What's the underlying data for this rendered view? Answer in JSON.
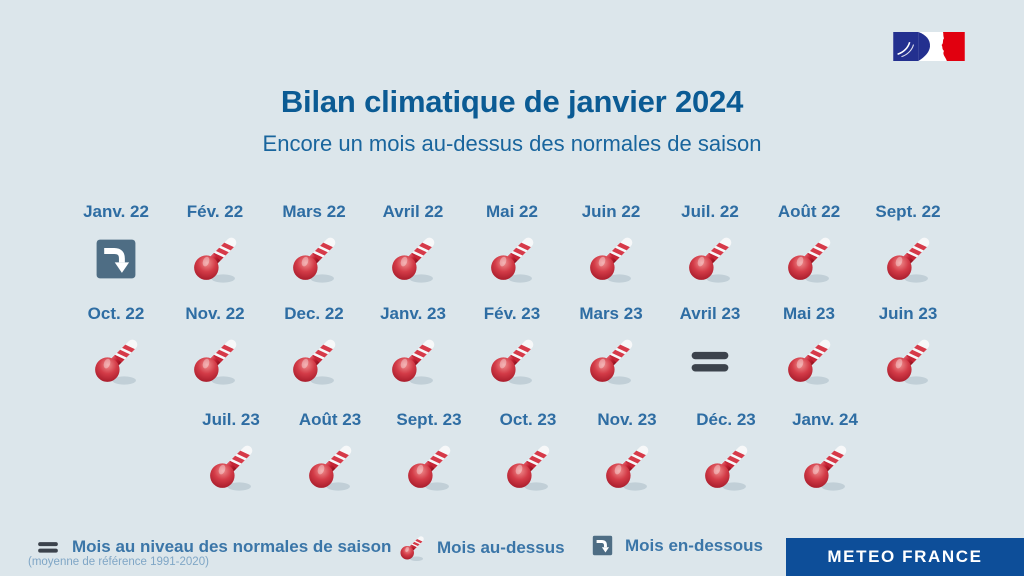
{
  "colors": {
    "bg": "#dce6eb",
    "title": "#0b5b94",
    "subtitle": "#19659d",
    "month-label": "#2e6da3",
    "legend-text": "#3b76a8",
    "note-text": "#7fa6c6",
    "brand-bg": "#0d4e99",
    "brand-text": "#ffffff",
    "arrow-box": "#4e6d84",
    "equals": "#3c434c",
    "thermo-red": "#c21f2e",
    "flag-blue": "#23308f",
    "flag-red": "#e1000f"
  },
  "header": {
    "title": "Bilan climatique de janvier 2024",
    "subtitle": "Encore un mois au-dessus des normales de saison"
  },
  "grid": {
    "rows": [
      [
        {
          "label": "Janv. 22",
          "status": "below"
        },
        {
          "label": "Fév. 22",
          "status": "above"
        },
        {
          "label": "Mars 22",
          "status": "above"
        },
        {
          "label": "Avril 22",
          "status": "above"
        },
        {
          "label": "Mai 22",
          "status": "above"
        },
        {
          "label": "Juin 22",
          "status": "above"
        },
        {
          "label": "Juil. 22",
          "status": "above"
        },
        {
          "label": "Août 22",
          "status": "above"
        },
        {
          "label": "Sept. 22",
          "status": "above"
        }
      ],
      [
        {
          "label": "Oct. 22",
          "status": "above"
        },
        {
          "label": "Nov. 22",
          "status": "above"
        },
        {
          "label": "Dec. 22",
          "status": "above"
        },
        {
          "label": "Janv. 23",
          "status": "above"
        },
        {
          "label": "Fév. 23",
          "status": "above"
        },
        {
          "label": "Mars 23",
          "status": "above"
        },
        {
          "label": "Avril 23",
          "status": "equal"
        },
        {
          "label": "Mai 23",
          "status": "above"
        },
        {
          "label": "Juin 23",
          "status": "above"
        }
      ],
      [
        {
          "label": "Juil. 23",
          "status": "above"
        },
        {
          "label": "Août 23",
          "status": "above"
        },
        {
          "label": "Sept. 23",
          "status": "above"
        },
        {
          "label": "Oct. 23",
          "status": "above"
        },
        {
          "label": "Nov. 23",
          "status": "above"
        },
        {
          "label": "Déc. 23",
          "status": "above"
        },
        {
          "label": "Janv. 24",
          "status": "above"
        }
      ]
    ]
  },
  "legend": {
    "equal_label": "Mois au niveau des normales de saison",
    "equal_note": "(moyenne de référence 1991-2020)",
    "above_label": "Mois au-dessus",
    "below_label": "Mois en-dessous"
  },
  "footer": {
    "brand": "METEO FRANCE"
  },
  "logo": {
    "name": "marianne-tricolor-flag"
  },
  "chart_data": {
    "type": "table",
    "title": "Bilan climatique de janvier 2024",
    "subtitle": "Encore un mois au-dessus des normales de saison",
    "categories": [
      "Janv. 22",
      "Fév. 22",
      "Mars 22",
      "Avril 22",
      "Mai 22",
      "Juin 22",
      "Juil. 22",
      "Août 22",
      "Sept. 22",
      "Oct. 22",
      "Nov. 22",
      "Dec. 22",
      "Janv. 23",
      "Fév. 23",
      "Mars 23",
      "Avril 23",
      "Mai 23",
      "Juin 23",
      "Juil. 23",
      "Août 23",
      "Sept. 23",
      "Oct. 23",
      "Nov. 23",
      "Déc. 23",
      "Janv. 24"
    ],
    "values": [
      "below",
      "above",
      "above",
      "above",
      "above",
      "above",
      "above",
      "above",
      "above",
      "above",
      "above",
      "above",
      "above",
      "above",
      "above",
      "equal",
      "above",
      "above",
      "above",
      "above",
      "above",
      "above",
      "above",
      "above",
      "above"
    ],
    "status_legend": {
      "above": "Mois au-dessus",
      "equal": "Mois au niveau des normales de saison (moyenne de référence 1991-2020)",
      "below": "Mois en-dessous"
    },
    "legend_position": "bottom"
  }
}
